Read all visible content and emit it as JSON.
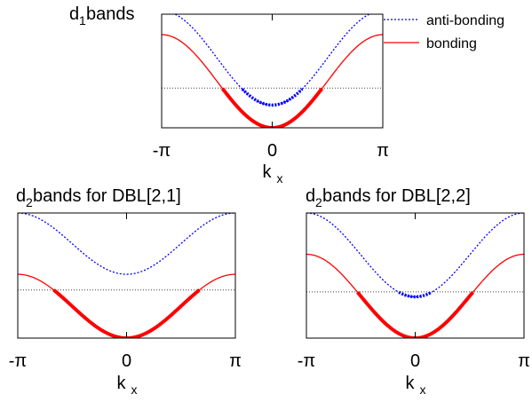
{
  "chart_data": [
    {
      "type": "line",
      "title_main": "d",
      "title_sub": "1",
      "title_rest": " bands",
      "xlabel_main": "k",
      "xlabel_sub": "x",
      "xtick_labels": [
        "-π",
        "0",
        "π"
      ],
      "xlim": [
        -3.14159,
        3.14159
      ],
      "ylim": [
        0,
        1
      ],
      "fermi_level": 0.35,
      "legend": {
        "placement": "top-right",
        "entries": [
          "anti-bonding",
          "bonding"
        ]
      },
      "series": [
        {
          "name": "anti-bonding",
          "color": "#0000ff",
          "style": "dotted",
          "min": 0.2,
          "max": 1.03
        },
        {
          "name": "bonding",
          "color": "#ff0000",
          "style": "solid",
          "min": 0.0,
          "max": 0.82
        }
      ]
    },
    {
      "type": "line",
      "title_main": "d",
      "title_sub": "2",
      "title_rest": " bands for DBL[2,1]",
      "xlabel_main": "k",
      "xlabel_sub": "x",
      "xtick_labels": [
        "-π",
        "0",
        "π"
      ],
      "xlim": [
        -3.14159,
        3.14159
      ],
      "ylim": [
        0,
        1
      ],
      "fermi_level": 0.385,
      "series": [
        {
          "name": "anti-bonding",
          "color": "#0000ff",
          "style": "dotted",
          "min": 0.51,
          "max": 1.0
        },
        {
          "name": "bonding",
          "color": "#ff0000",
          "style": "solid",
          "min": 0.0,
          "max": 0.51
        }
      ]
    },
    {
      "type": "line",
      "title_main": "d",
      "title_sub": "2",
      "title_rest": " bands for DBL[2,2]",
      "xlabel_main": "k",
      "xlabel_sub": "x",
      "xtick_labels": [
        "-π",
        "0",
        "π"
      ],
      "xlim": [
        -3.14159,
        3.14159
      ],
      "ylim": [
        0,
        1
      ],
      "fermi_level": 0.37,
      "series": [
        {
          "name": "anti-bonding",
          "color": "#0000ff",
          "style": "dotted",
          "min": 0.33,
          "max": 1.0
        },
        {
          "name": "bonding",
          "color": "#ff0000",
          "style": "solid",
          "min": 0.0,
          "max": 0.67
        }
      ]
    }
  ]
}
